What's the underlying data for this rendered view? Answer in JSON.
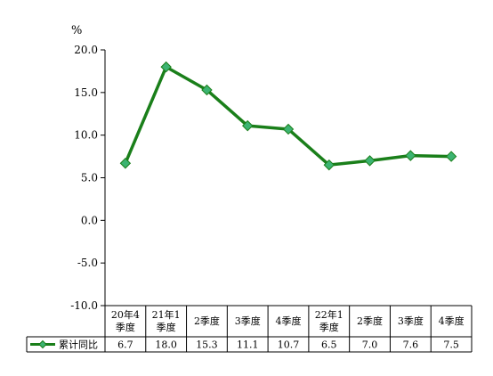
{
  "chart_data": {
    "type": "line",
    "unit_label": "%",
    "ylim": [
      -10.0,
      20.0
    ],
    "yticks": [
      "20.0",
      "15.0",
      "10.0",
      "5.0",
      "0.0",
      "-5.0",
      "-10.0"
    ],
    "categories": [
      "20年4季度",
      "21年1季度",
      "2季度",
      "3季度",
      "4季度",
      "22年1季度",
      "2季度",
      "3季度",
      "4季度"
    ],
    "series": [
      {
        "name": "累计同比",
        "values": [
          6.7,
          18.0,
          15.3,
          11.1,
          10.7,
          6.5,
          7.0,
          7.6,
          7.5
        ],
        "labels": [
          "6.7",
          "18.0",
          "15.3",
          "11.1",
          "10.7",
          "6.5",
          "7.0",
          "7.6",
          "7.5"
        ],
        "color": "#1a7f1a",
        "marker_color": "#3cb371"
      }
    ],
    "grid": false,
    "legend": "data-table-left"
  }
}
